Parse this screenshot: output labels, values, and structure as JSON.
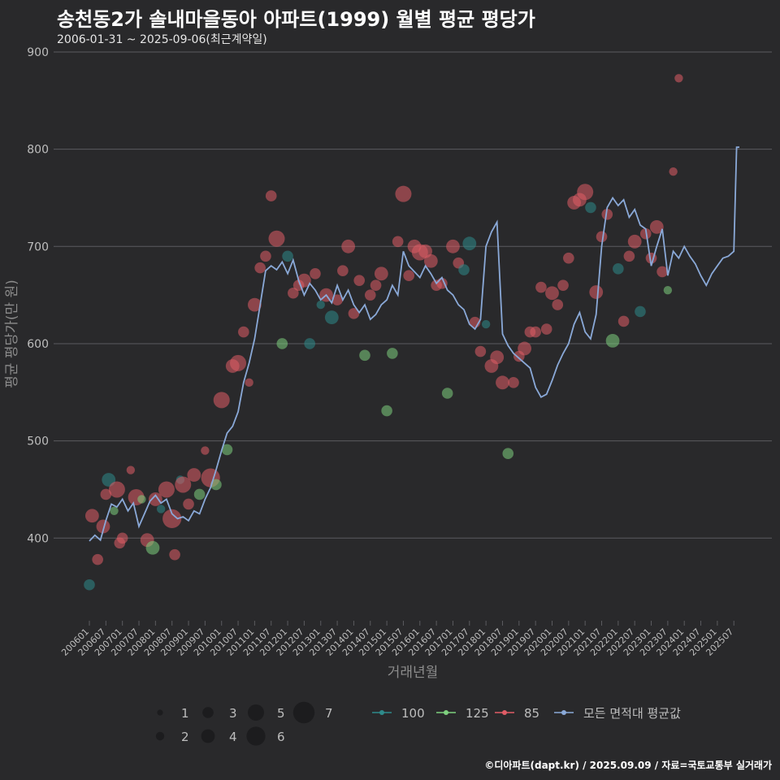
{
  "title": "송천동2가 솔내마을동아 아파트(1999) 월별 평균 평당가",
  "subtitle": "2006-01-31 ~ 2025-09-06(최근계약일)",
  "source": "©디아파트(dapt.kr) / 2025.09.09 / 자료=국토교통부 실거래가",
  "colors": {
    "background": "#29292b",
    "grid": "#5b5b5f",
    "text": "#bdbdbd",
    "area_100": "#2e8b8b",
    "area_125": "#7ed07e",
    "area_85": "#e05c66",
    "avg_line": "#8aa9d8"
  },
  "chart_data": {
    "type": "line",
    "xlabel": "거래년월",
    "ylabel": "평균 평당가(만 원)",
    "ylim": [
      310,
      910
    ],
    "yticks": [
      400,
      500,
      600,
      700,
      800,
      900
    ],
    "x_start": "200601",
    "x_end": "202509",
    "xticks": [
      "200601",
      "200607",
      "200701",
      "200707",
      "200801",
      "200807",
      "200901",
      "200907",
      "201001",
      "201007",
      "201101",
      "201107",
      "201201",
      "201207",
      "201301",
      "201307",
      "201401",
      "201407",
      "201501",
      "201507",
      "201601",
      "201607",
      "201701",
      "201707",
      "201801",
      "201807",
      "201901",
      "201907",
      "202001",
      "202007",
      "202101",
      "202107",
      "202201",
      "202207",
      "202301",
      "202307",
      "202401",
      "202407",
      "202501",
      "202507"
    ],
    "grid": true,
    "legend_position": "bottom",
    "size_legend": [
      1,
      2,
      3,
      4,
      5,
      6,
      7
    ],
    "series_legend": [
      "100",
      "125",
      "85",
      "모든 면적대 평균값"
    ],
    "avg_series": {
      "name": "모든 면적대 평균값",
      "points": [
        [
          "200601",
          397
        ],
        [
          "200603",
          403
        ],
        [
          "200605",
          398
        ],
        [
          "200607",
          418
        ],
        [
          "200609",
          435
        ],
        [
          "200611",
          432
        ],
        [
          "200701",
          440
        ],
        [
          "200703",
          428
        ],
        [
          "200705",
          436
        ],
        [
          "200707",
          412
        ],
        [
          "200709",
          425
        ],
        [
          "200711",
          438
        ],
        [
          "200801",
          444
        ],
        [
          "200803",
          436
        ],
        [
          "200805",
          440
        ],
        [
          "200807",
          425
        ],
        [
          "200809",
          420
        ],
        [
          "200811",
          422
        ],
        [
          "200901",
          418
        ],
        [
          "200903",
          428
        ],
        [
          "200905",
          425
        ],
        [
          "200907",
          440
        ],
        [
          "200909",
          452
        ],
        [
          "200911",
          470
        ],
        [
          "201001",
          490
        ],
        [
          "201003",
          508
        ],
        [
          "201005",
          515
        ],
        [
          "201007",
          530
        ],
        [
          "201009",
          560
        ],
        [
          "201011",
          580
        ],
        [
          "201101",
          605
        ],
        [
          "201103",
          640
        ],
        [
          "201105",
          675
        ],
        [
          "201107",
          680
        ],
        [
          "201109",
          676
        ],
        [
          "201111",
          684
        ],
        [
          "201201",
          672
        ],
        [
          "201203",
          686
        ],
        [
          "201205",
          665
        ],
        [
          "201207",
          650
        ],
        [
          "201209",
          662
        ],
        [
          "201211",
          655
        ],
        [
          "201301",
          645
        ],
        [
          "201303",
          650
        ],
        [
          "201305",
          642
        ],
        [
          "201307",
          660
        ],
        [
          "201309",
          645
        ],
        [
          "201311",
          655
        ],
        [
          "201401",
          640
        ],
        [
          "201403",
          632
        ],
        [
          "201405",
          640
        ],
        [
          "201407",
          625
        ],
        [
          "201409",
          630
        ],
        [
          "201411",
          640
        ],
        [
          "201501",
          645
        ],
        [
          "201503",
          660
        ],
        [
          "201505",
          650
        ],
        [
          "201507",
          695
        ],
        [
          "201509",
          680
        ],
        [
          "201511",
          674
        ],
        [
          "201601",
          668
        ],
        [
          "201603",
          680
        ],
        [
          "201605",
          672
        ],
        [
          "201607",
          662
        ],
        [
          "201609",
          668
        ],
        [
          "201611",
          655
        ],
        [
          "201701",
          650
        ],
        [
          "201703",
          640
        ],
        [
          "201705",
          635
        ],
        [
          "201707",
          620
        ],
        [
          "201709",
          615
        ],
        [
          "201711",
          625
        ],
        [
          "201801",
          700
        ],
        [
          "201803",
          715
        ],
        [
          "201805",
          725
        ],
        [
          "201807",
          610
        ],
        [
          "201809",
          598
        ],
        [
          "201811",
          590
        ],
        [
          "201901",
          585
        ],
        [
          "201903",
          580
        ],
        [
          "201905",
          575
        ],
        [
          "201907",
          555
        ],
        [
          "201909",
          545
        ],
        [
          "201911",
          548
        ],
        [
          "202001",
          562
        ],
        [
          "202003",
          578
        ],
        [
          "202005",
          590
        ],
        [
          "202007",
          600
        ],
        [
          "202009",
          620
        ],
        [
          "202011",
          632
        ],
        [
          "202101",
          612
        ],
        [
          "202103",
          605
        ],
        [
          "202105",
          630
        ],
        [
          "202107",
          700
        ],
        [
          "202109",
          740
        ],
        [
          "202111",
          750
        ],
        [
          "202201",
          742
        ],
        [
          "202203",
          748
        ],
        [
          "202205",
          730
        ],
        [
          "202207",
          738
        ],
        [
          "202209",
          722
        ],
        [
          "202211",
          718
        ],
        [
          "202301",
          680
        ],
        [
          "202303",
          700
        ],
        [
          "202305",
          718
        ],
        [
          "202307",
          670
        ],
        [
          "202309",
          695
        ],
        [
          "202311",
          688
        ],
        [
          "202401",
          700
        ],
        [
          "202403",
          690
        ],
        [
          "202405",
          682
        ],
        [
          "202407",
          670
        ],
        [
          "202409",
          660
        ],
        [
          "202411",
          672
        ],
        [
          "202501",
          680
        ],
        [
          "202503",
          688
        ],
        [
          "202505",
          690
        ],
        [
          "202507",
          695
        ],
        [
          "202508",
          802
        ],
        [
          "202509",
          802
        ]
      ]
    },
    "bubbles": [
      {
        "x": "200601",
        "y": 352,
        "area": "100",
        "size": 3
      },
      {
        "x": "200602",
        "y": 423,
        "area": "85",
        "size": 4
      },
      {
        "x": "200604",
        "y": 378,
        "area": "85",
        "size": 3
      },
      {
        "x": "200606",
        "y": 412,
        "area": "85",
        "size": 4
      },
      {
        "x": "200607",
        "y": 445,
        "area": "85",
        "size": 3
      },
      {
        "x": "200608",
        "y": 460,
        "area": "100",
        "size": 4
      },
      {
        "x": "200610",
        "y": 428,
        "area": "125",
        "size": 2
      },
      {
        "x": "200611",
        "y": 450,
        "area": "85",
        "size": 5
      },
      {
        "x": "200612",
        "y": 395,
        "area": "85",
        "size": 3
      },
      {
        "x": "200701",
        "y": 400,
        "area": "85",
        "size": 3
      },
      {
        "x": "200704",
        "y": 470,
        "area": "85",
        "size": 2
      },
      {
        "x": "200706",
        "y": 442,
        "area": "85",
        "size": 5
      },
      {
        "x": "200708",
        "y": 440,
        "area": "125",
        "size": 2
      },
      {
        "x": "200710",
        "y": 398,
        "area": "85",
        "size": 4
      },
      {
        "x": "200712",
        "y": 390,
        "area": "125",
        "size": 4
      },
      {
        "x": "200801",
        "y": 440,
        "area": "85",
        "size": 4
      },
      {
        "x": "200803",
        "y": 430,
        "area": "100",
        "size": 2
      },
      {
        "x": "200805",
        "y": 450,
        "area": "85",
        "size": 5
      },
      {
        "x": "200807",
        "y": 420,
        "area": "85",
        "size": 6
      },
      {
        "x": "200808",
        "y": 383,
        "area": "85",
        "size": 3
      },
      {
        "x": "200810",
        "y": 460,
        "area": "100",
        "size": 2
      },
      {
        "x": "200811",
        "y": 455,
        "area": "85",
        "size": 5
      },
      {
        "x": "200901",
        "y": 435,
        "area": "85",
        "size": 3
      },
      {
        "x": "200903",
        "y": 465,
        "area": "85",
        "size": 4
      },
      {
        "x": "200905",
        "y": 445,
        "area": "125",
        "size": 3
      },
      {
        "x": "200907",
        "y": 490,
        "area": "85",
        "size": 2
      },
      {
        "x": "200909",
        "y": 462,
        "area": "85",
        "size": 6
      },
      {
        "x": "200911",
        "y": 455,
        "area": "125",
        "size": 3
      },
      {
        "x": "201001",
        "y": 542,
        "area": "85",
        "size": 5
      },
      {
        "x": "201003",
        "y": 491,
        "area": "125",
        "size": 3
      },
      {
        "x": "201005",
        "y": 577,
        "area": "85",
        "size": 4
      },
      {
        "x": "201007",
        "y": 580,
        "area": "85",
        "size": 5
      },
      {
        "x": "201009",
        "y": 612,
        "area": "85",
        "size": 3
      },
      {
        "x": "201011",
        "y": 560,
        "area": "85",
        "size": 2
      },
      {
        "x": "201101",
        "y": 640,
        "area": "85",
        "size": 4
      },
      {
        "x": "201103",
        "y": 678,
        "area": "85",
        "size": 3
      },
      {
        "x": "201105",
        "y": 690,
        "area": "85",
        "size": 3
      },
      {
        "x": "201107",
        "y": 752,
        "area": "85",
        "size": 3
      },
      {
        "x": "201109",
        "y": 708,
        "area": "85",
        "size": 5
      },
      {
        "x": "201111",
        "y": 600,
        "area": "125",
        "size": 3
      },
      {
        "x": "201201",
        "y": 690,
        "area": "100",
        "size": 3
      },
      {
        "x": "201203",
        "y": 652,
        "area": "85",
        "size": 3
      },
      {
        "x": "201205",
        "y": 660,
        "area": "85",
        "size": 3
      },
      {
        "x": "201207",
        "y": 665,
        "area": "85",
        "size": 4
      },
      {
        "x": "201209",
        "y": 600,
        "area": "100",
        "size": 3
      },
      {
        "x": "201211",
        "y": 672,
        "area": "85",
        "size": 3
      },
      {
        "x": "201301",
        "y": 640,
        "area": "100",
        "size": 2
      },
      {
        "x": "201303",
        "y": 650,
        "area": "85",
        "size": 4
      },
      {
        "x": "201305",
        "y": 627,
        "area": "100",
        "size": 4
      },
      {
        "x": "201307",
        "y": 645,
        "area": "85",
        "size": 3
      },
      {
        "x": "201309",
        "y": 675,
        "area": "85",
        "size": 3
      },
      {
        "x": "201311",
        "y": 700,
        "area": "85",
        "size": 4
      },
      {
        "x": "201401",
        "y": 631,
        "area": "85",
        "size": 3
      },
      {
        "x": "201403",
        "y": 665,
        "area": "85",
        "size": 3
      },
      {
        "x": "201405",
        "y": 588,
        "area": "125",
        "size": 3
      },
      {
        "x": "201407",
        "y": 650,
        "area": "85",
        "size": 3
      },
      {
        "x": "201409",
        "y": 660,
        "area": "85",
        "size": 3
      },
      {
        "x": "201411",
        "y": 672,
        "area": "85",
        "size": 4
      },
      {
        "x": "201501",
        "y": 531,
        "area": "125",
        "size": 3
      },
      {
        "x": "201503",
        "y": 590,
        "area": "125",
        "size": 3
      },
      {
        "x": "201505",
        "y": 705,
        "area": "85",
        "size": 3
      },
      {
        "x": "201507",
        "y": 754,
        "area": "85",
        "size": 5
      },
      {
        "x": "201509",
        "y": 670,
        "area": "85",
        "size": 3
      },
      {
        "x": "201511",
        "y": 700,
        "area": "85",
        "size": 4
      },
      {
        "x": "201601",
        "y": 694,
        "area": "85",
        "size": 5
      },
      {
        "x": "201603",
        "y": 695,
        "area": "85",
        "size": 4
      },
      {
        "x": "201605",
        "y": 685,
        "area": "85",
        "size": 4
      },
      {
        "x": "201607",
        "y": 660,
        "area": "85",
        "size": 3
      },
      {
        "x": "201609",
        "y": 662,
        "area": "85",
        "size": 3
      },
      {
        "x": "201611",
        "y": 549,
        "area": "125",
        "size": 3
      },
      {
        "x": "201701",
        "y": 700,
        "area": "85",
        "size": 4
      },
      {
        "x": "201703",
        "y": 683,
        "area": "85",
        "size": 3
      },
      {
        "x": "201705",
        "y": 676,
        "area": "100",
        "size": 3
      },
      {
        "x": "201707",
        "y": 703,
        "area": "100",
        "size": 4
      },
      {
        "x": "201709",
        "y": 622,
        "area": "85",
        "size": 3
      },
      {
        "x": "201711",
        "y": 592,
        "area": "85",
        "size": 3
      },
      {
        "x": "201801",
        "y": 620,
        "area": "100",
        "size": 2
      },
      {
        "x": "201803",
        "y": 577,
        "area": "85",
        "size": 4
      },
      {
        "x": "201805",
        "y": 586,
        "area": "85",
        "size": 4
      },
      {
        "x": "201807",
        "y": 560,
        "area": "85",
        "size": 4
      },
      {
        "x": "201809",
        "y": 487,
        "area": "125",
        "size": 3
      },
      {
        "x": "201811",
        "y": 560,
        "area": "85",
        "size": 3
      },
      {
        "x": "201901",
        "y": 587,
        "area": "85",
        "size": 3
      },
      {
        "x": "201903",
        "y": 595,
        "area": "85",
        "size": 4
      },
      {
        "x": "201905",
        "y": 612,
        "area": "85",
        "size": 3
      },
      {
        "x": "201907",
        "y": 612,
        "area": "85",
        "size": 3
      },
      {
        "x": "201909",
        "y": 658,
        "area": "85",
        "size": 3
      },
      {
        "x": "201911",
        "y": 615,
        "area": "85",
        "size": 3
      },
      {
        "x": "202001",
        "y": 652,
        "area": "85",
        "size": 4
      },
      {
        "x": "202003",
        "y": 640,
        "area": "85",
        "size": 3
      },
      {
        "x": "202005",
        "y": 660,
        "area": "85",
        "size": 3
      },
      {
        "x": "202007",
        "y": 688,
        "area": "85",
        "size": 3
      },
      {
        "x": "202009",
        "y": 745,
        "area": "85",
        "size": 4
      },
      {
        "x": "202011",
        "y": 748,
        "area": "85",
        "size": 4
      },
      {
        "x": "202101",
        "y": 756,
        "area": "85",
        "size": 5
      },
      {
        "x": "202103",
        "y": 740,
        "area": "100",
        "size": 3
      },
      {
        "x": "202105",
        "y": 653,
        "area": "85",
        "size": 4
      },
      {
        "x": "202107",
        "y": 710,
        "area": "85",
        "size": 3
      },
      {
        "x": "202109",
        "y": 733,
        "area": "85",
        "size": 3
      },
      {
        "x": "202111",
        "y": 603,
        "area": "125",
        "size": 4
      },
      {
        "x": "202201",
        "y": 677,
        "area": "100",
        "size": 3
      },
      {
        "x": "202203",
        "y": 623,
        "area": "85",
        "size": 3
      },
      {
        "x": "202205",
        "y": 690,
        "area": "85",
        "size": 3
      },
      {
        "x": "202207",
        "y": 705,
        "area": "85",
        "size": 4
      },
      {
        "x": "202209",
        "y": 633,
        "area": "100",
        "size": 3
      },
      {
        "x": "202211",
        "y": 713,
        "area": "85",
        "size": 3
      },
      {
        "x": "202301",
        "y": 688,
        "area": "85",
        "size": 3
      },
      {
        "x": "202303",
        "y": 720,
        "area": "85",
        "size": 4
      },
      {
        "x": "202305",
        "y": 674,
        "area": "85",
        "size": 3
      },
      {
        "x": "202307",
        "y": 655,
        "area": "125",
        "size": 2
      },
      {
        "x": "202309",
        "y": 777,
        "area": "85",
        "size": 2
      },
      {
        "x": "202311",
        "y": 873,
        "area": "85",
        "size": 2
      }
    ]
  }
}
